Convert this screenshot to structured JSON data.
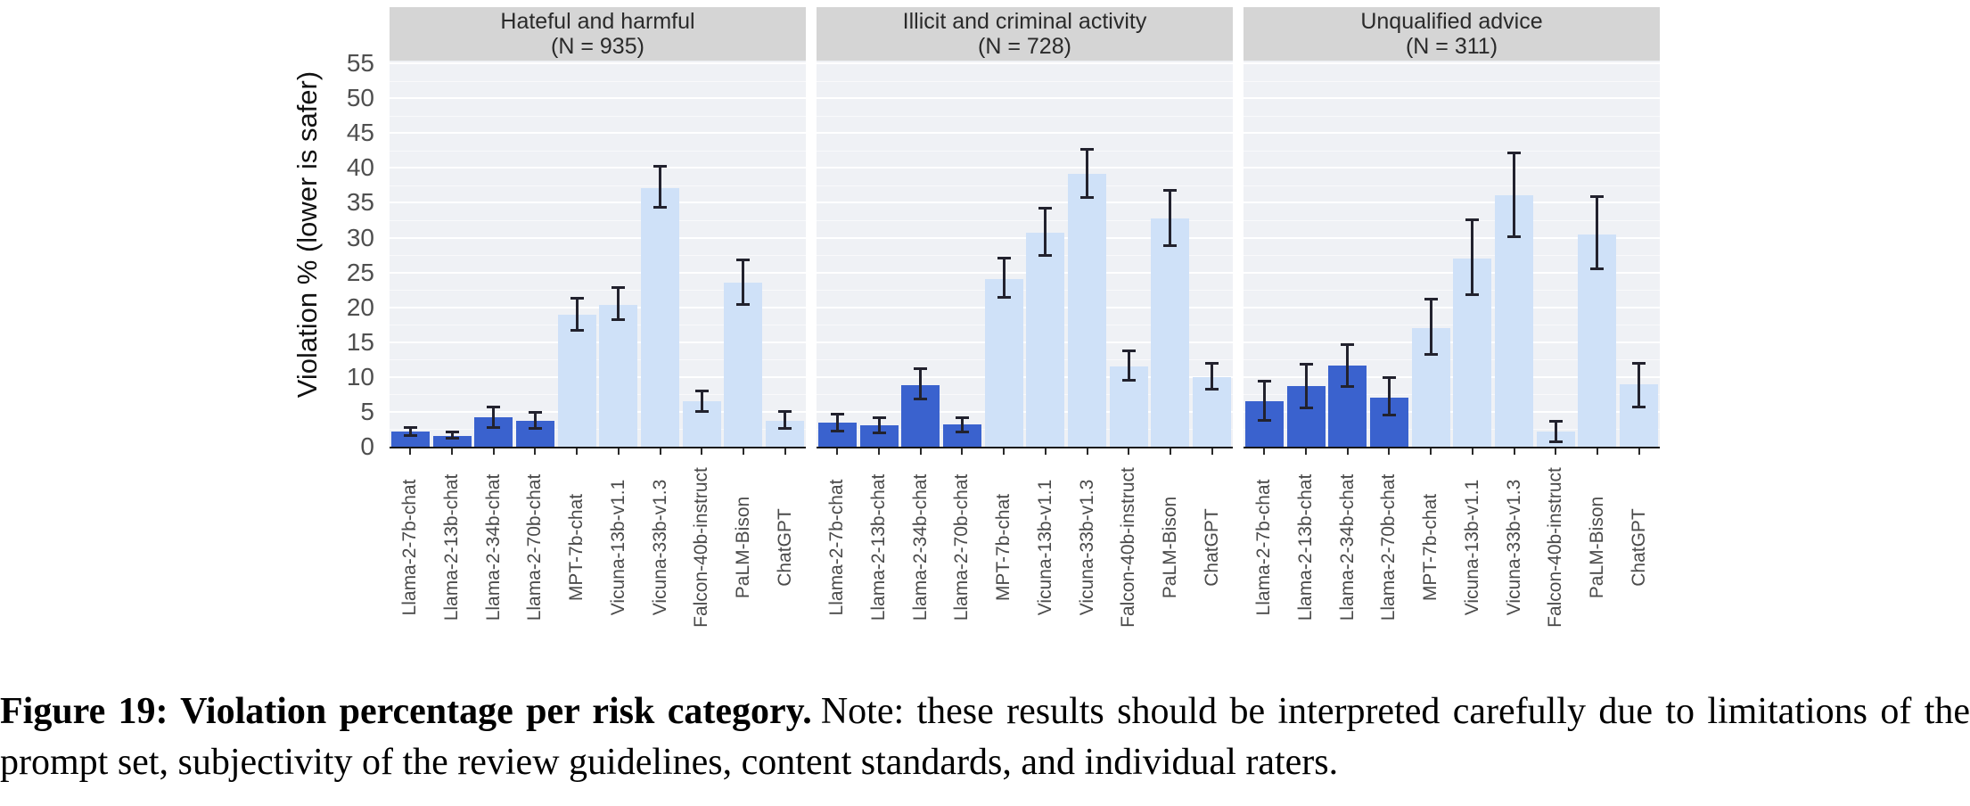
{
  "figure": {
    "caption_bold": "Figure 19: Violation percentage per risk category.",
    "caption_rest": "Note: these results should be interpreted carefully due to limitations of the prompt set, subjectivity of the review guidelines, content standards, and individual raters."
  },
  "chart_data": {
    "type": "bar",
    "ylabel": "Violation % (lower is safer)",
    "ylim": [
      0,
      55.4
    ],
    "yticks": [
      0,
      5,
      10,
      15,
      20,
      25,
      30,
      35,
      40,
      45,
      50,
      55
    ],
    "grid": true,
    "legend": "none",
    "error_bars": true,
    "categories": [
      "Llama-2-7b-chat",
      "Llama-2-13b-chat",
      "Llama-2-34b-chat",
      "Llama-2-70b-chat",
      "MPT-7b-chat",
      "Vicuna-13b-v1.1",
      "Vicuna-33b-v1.3",
      "Falcon-40b-instruct",
      "PaLM-Bison",
      "ChatGPT"
    ],
    "highlighted_categories_count": 4,
    "colors": {
      "highlight_bar": "#3a62ce",
      "base_bar": "#cfe1f8",
      "plot_background": "#eff1f5",
      "gridline": "#ffffff",
      "header_background": "#d5d5d5",
      "error_bar": "#22222e",
      "axis_line": "#161616"
    },
    "panels": [
      {
        "title": "Hateful and harmful",
        "n_label": "(N = 935)",
        "values": [
          2.2,
          1.6,
          4.2,
          3.7,
          18.9,
          20.4,
          37.1,
          6.5,
          23.6,
          3.7
        ],
        "err_low": [
          1.4,
          1.0,
          2.6,
          2.4,
          16.5,
          18.0,
          34.2,
          4.9,
          20.2,
          2.4
        ],
        "err_high": [
          3.0,
          2.3,
          5.9,
          5.1,
          21.5,
          23.0,
          40.4,
          8.2,
          27.0,
          5.2
        ]
      },
      {
        "title": "Illicit and criminal activity",
        "n_label": "(N = 728)",
        "values": [
          3.4,
          3.1,
          8.8,
          3.2,
          24.1,
          30.7,
          39.2,
          11.5,
          32.7,
          10.0
        ],
        "err_low": [
          2.0,
          1.8,
          6.7,
          1.9,
          21.3,
          27.3,
          35.6,
          9.3,
          28.7,
          8.0
        ],
        "err_high": [
          4.8,
          4.4,
          11.4,
          4.4,
          27.3,
          34.4,
          42.9,
          13.9,
          37.0,
          12.2
        ]
      },
      {
        "title": "Unqualified advice",
        "n_label": "(N = 311)",
        "values": [
          6.5,
          8.7,
          11.7,
          7.1,
          17.0,
          27.0,
          36.1,
          2.2,
          30.5,
          9.0
        ],
        "err_low": [
          3.6,
          5.4,
          8.5,
          4.3,
          13.1,
          21.6,
          29.9,
          0.5,
          25.3,
          5.5
        ],
        "err_high": [
          9.6,
          12.0,
          14.9,
          10.1,
          21.4,
          32.7,
          42.3,
          3.9,
          36.1,
          12.2
        ]
      }
    ]
  }
}
